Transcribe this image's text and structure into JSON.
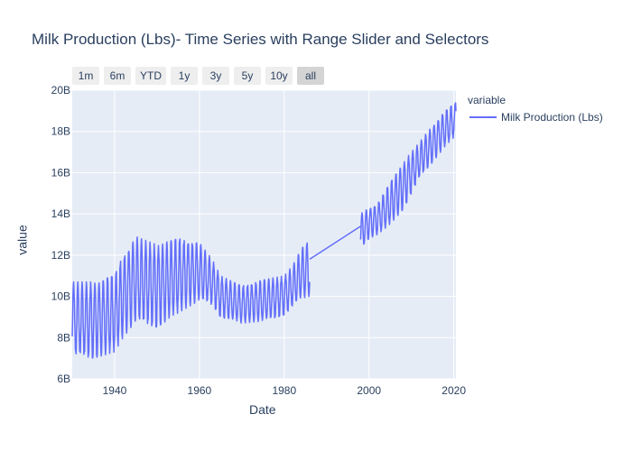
{
  "chart_data": {
    "type": "line",
    "title": "Milk Production (Lbs)- Time Series with Range Slider and Selectors",
    "xlabel": "Date",
    "ylabel": "value",
    "xlim": [
      1930,
      2020.5
    ],
    "ylim": [
      6,
      20
    ],
    "x_ticks": [
      "1940",
      "1960",
      "1980",
      "2000",
      "2020"
    ],
    "y_ticks": [
      "6B",
      "8B",
      "10B",
      "12B",
      "14B",
      "16B",
      "18B",
      "20B"
    ],
    "grid": true,
    "legend": {
      "title": "variable",
      "placement": "top-right"
    },
    "range_selectors": [
      "1m",
      "6m",
      "YTD",
      "1y",
      "3y",
      "5y",
      "10y",
      "all"
    ],
    "active_selector": "all",
    "series": [
      {
        "name": "Milk Production (Lbs)",
        "color": "#636efa",
        "unit": "billion lbs",
        "segments": [
          {
            "start": 1930,
            "end": 1986,
            "x": [
              1930,
              1935,
              1940,
              1942,
              1945,
              1950,
              1955,
              1960,
              1963,
              1965,
              1970,
              1975,
              1980,
              1982,
              1984,
              1986
            ],
            "low": [
              7.2,
              7.0,
              7.3,
              8.0,
              8.8,
              8.5,
              9.2,
              9.8,
              9.6,
              9.0,
              8.7,
              8.8,
              9.1,
              9.5,
              9.9,
              10.0
            ],
            "high": [
              10.7,
              10.7,
              11.0,
              12.0,
              12.9,
              12.5,
              12.8,
              12.6,
              11.8,
              11.0,
              10.5,
              10.8,
              11.0,
              11.5,
              12.3,
              12.8
            ]
          },
          {
            "start": 1998,
            "end": 2020.5,
            "x": [
              1998,
              2000,
              2002,
              2005,
              2008,
              2010,
              2012,
              2015,
              2018,
              2020.5
            ],
            "low": [
              12.3,
              12.8,
              13.0,
              13.5,
              14.2,
              15.0,
              15.8,
              16.5,
              17.3,
              17.8
            ],
            "high": [
              14.0,
              14.3,
              14.5,
              15.5,
              16.5,
              17.0,
              17.5,
              18.3,
              19.0,
              19.4
            ]
          }
        ],
        "connector": {
          "x": [
            1986,
            1998
          ],
          "y": [
            11.8,
            13.4
          ]
        }
      }
    ]
  }
}
